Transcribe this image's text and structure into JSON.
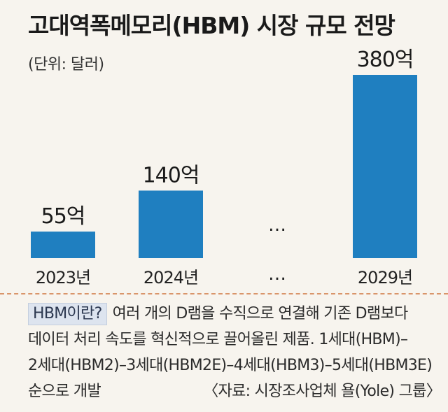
{
  "chart_data": {
    "type": "bar",
    "title": "고대역폭메모리(HBM) 시장 규모 전망",
    "unit_label": "(단위: 달러)",
    "categories": [
      "2023년",
      "2024년",
      "2029년"
    ],
    "values": [
      55,
      140,
      380
    ],
    "value_labels": [
      "55억",
      "140억",
      "380억"
    ],
    "gap_marker": "…",
    "color": "#1f7fc0",
    "grid": false,
    "legend": "none"
  },
  "note": {
    "tag": "HBM이란?",
    "line1": "여러 개의 D램을 수직으로 연결해 기존 D램보다",
    "line2": "데이터 처리 속도를 혁신적으로 끌어올린 제품. 1세대(HBM)–",
    "line3": "2세대(HBM2)–3세대(HBM2E)–4세대(HBM3)–5세대(HBM3E)",
    "line4": "순으로 개발",
    "source": "〈자료: 시장조사업체 욜(Yole) 그룹〉"
  }
}
